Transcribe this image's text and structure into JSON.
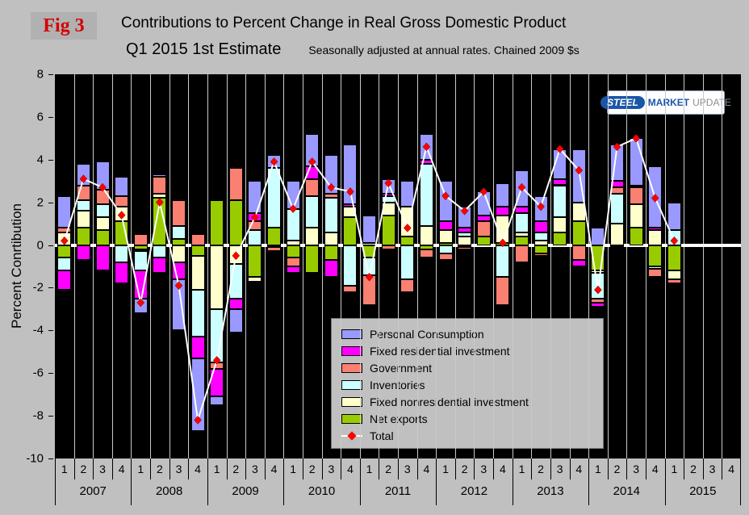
{
  "fig_label": "Fig 3",
  "title": "Contributions to Percent Change in Real Gross Domestic Product",
  "subtitle": "Q1 2015 1st Estimate",
  "subtitle_note": "Seasonally adjusted at annual rates. Chained 2009 $s",
  "ylabel": "Percent Conrtibution",
  "logo": {
    "part1": "STEEL",
    "part2": "MARKET",
    "part3": "UPDATE"
  },
  "chart_data": {
    "type": "bar",
    "stacked": true,
    "title": "Contributions to Percent Change in Real Gross Domestic Product",
    "ylim": [
      -10,
      8
    ],
    "yticks": [
      8,
      6,
      4,
      2,
      0,
      -2,
      -4,
      -6,
      -8,
      -10
    ],
    "grid": "vertical-only",
    "legend_position": "inside-bottom-center",
    "plot_background": "#000000",
    "years": [
      "2007",
      "2008",
      "2009",
      "2010",
      "2011",
      "2012",
      "2013",
      "2014",
      "2015"
    ],
    "quarter_labels": [
      "1",
      "2",
      "3",
      "4"
    ],
    "stack_order": [
      "Net exports",
      "Fixed nonresidential investment",
      "Inventories",
      "Government",
      "Fixed residential investment",
      "Personal Consumption"
    ],
    "series": [
      {
        "name": "Personal Consumption",
        "color": "#9999ff",
        "values": [
          1.5,
          1.0,
          1.3,
          0.9,
          -0.7,
          0.1,
          -2.4,
          -3.4,
          -0.4,
          -1.1,
          1.5,
          0.6,
          1.3,
          1.5,
          1.8,
          2.8,
          1.3,
          0.7,
          1.2,
          1.2,
          1.9,
          1.0,
          1.1,
          1.1,
          1.7,
          1.2,
          1.4,
          2.5,
          0.8,
          1.7,
          2.2,
          2.9,
          1.3,
          null,
          null,
          null
        ]
      },
      {
        "name": "Fixed residential investment",
        "color": "#ff00ff",
        "values": [
          -0.9,
          -0.7,
          -1.2,
          -1.0,
          -1.3,
          -0.7,
          -0.8,
          -1.0,
          -1.3,
          -0.5,
          0.4,
          0.0,
          -0.3,
          0.6,
          -0.8,
          0.1,
          -0.1,
          0.1,
          0.0,
          0.2,
          0.4,
          0.2,
          0.3,
          0.4,
          0.3,
          0.5,
          0.3,
          -0.3,
          -0.2,
          0.3,
          0.1,
          0.1,
          0.0,
          null,
          null,
          null
        ]
      },
      {
        "name": "Government",
        "color": "#fa8072",
        "values": [
          0.2,
          0.7,
          0.7,
          0.5,
          0.5,
          0.8,
          1.2,
          0.5,
          -0.3,
          1.5,
          0.4,
          -0.2,
          -0.4,
          0.8,
          0.2,
          -0.3,
          -1.4,
          -0.2,
          -0.6,
          -0.4,
          -0.3,
          -0.1,
          0.7,
          -1.3,
          -0.8,
          -0.1,
          0.0,
          -0.7,
          -0.2,
          0.3,
          0.8,
          -0.4,
          -0.2,
          null,
          null,
          null
        ]
      },
      {
        "name": "Inventories",
        "color": "#ccffff",
        "values": [
          -0.6,
          0.5,
          0.6,
          -0.8,
          -0.9,
          -0.6,
          0.6,
          -2.2,
          -2.5,
          -1.6,
          0.7,
          2.8,
          1.5,
          1.5,
          1.6,
          -1.9,
          -0.8,
          0.3,
          -1.6,
          2.9,
          -0.4,
          0.2,
          0.0,
          -1.5,
          0.9,
          0.4,
          1.5,
          0.0,
          -1.2,
          1.4,
          0.0,
          -0.1,
          0.7,
          null,
          null,
          null
        ]
      },
      {
        "name": "Fixed nonresidential investment",
        "color": "#ffffcc",
        "values": [
          0.6,
          0.8,
          0.6,
          0.7,
          -0.1,
          0.2,
          -0.8,
          -1.6,
          -3.0,
          -0.9,
          -0.2,
          -0.1,
          0.2,
          0.8,
          0.6,
          0.5,
          0.1,
          0.6,
          1.4,
          0.9,
          0.6,
          0.4,
          0.0,
          1.3,
          0.2,
          0.2,
          0.7,
          0.9,
          -0.1,
          1.0,
          1.1,
          0.7,
          -0.4,
          null,
          null,
          null
        ]
      },
      {
        "name": "Net exports",
        "color": "#99cc00",
        "values": [
          -0.6,
          0.8,
          0.7,
          1.1,
          -0.2,
          2.2,
          0.3,
          -0.5,
          2.1,
          2.1,
          -1.5,
          0.8,
          -0.6,
          -1.3,
          -0.7,
          1.3,
          -0.6,
          1.4,
          0.4,
          -0.2,
          0.1,
          -0.1,
          0.4,
          0.1,
          0.4,
          -0.4,
          0.6,
          1.1,
          -1.2,
          -0.1,
          0.8,
          -1.0,
          -1.2,
          null,
          null,
          null
        ]
      }
    ],
    "total": {
      "name": "Total",
      "marker_color": "#ff0000",
      "line_color": "#ffffff",
      "values": [
        0.2,
        3.1,
        2.7,
        1.4,
        -2.7,
        2.0,
        -1.9,
        -8.2,
        -5.4,
        -0.5,
        1.3,
        3.9,
        1.7,
        3.9,
        2.7,
        2.5,
        -1.5,
        2.9,
        0.8,
        4.6,
        2.3,
        1.6,
        2.5,
        0.1,
        2.7,
        1.8,
        4.5,
        3.5,
        -2.1,
        4.6,
        5.0,
        2.2,
        0.2,
        null,
        null,
        null
      ]
    }
  }
}
